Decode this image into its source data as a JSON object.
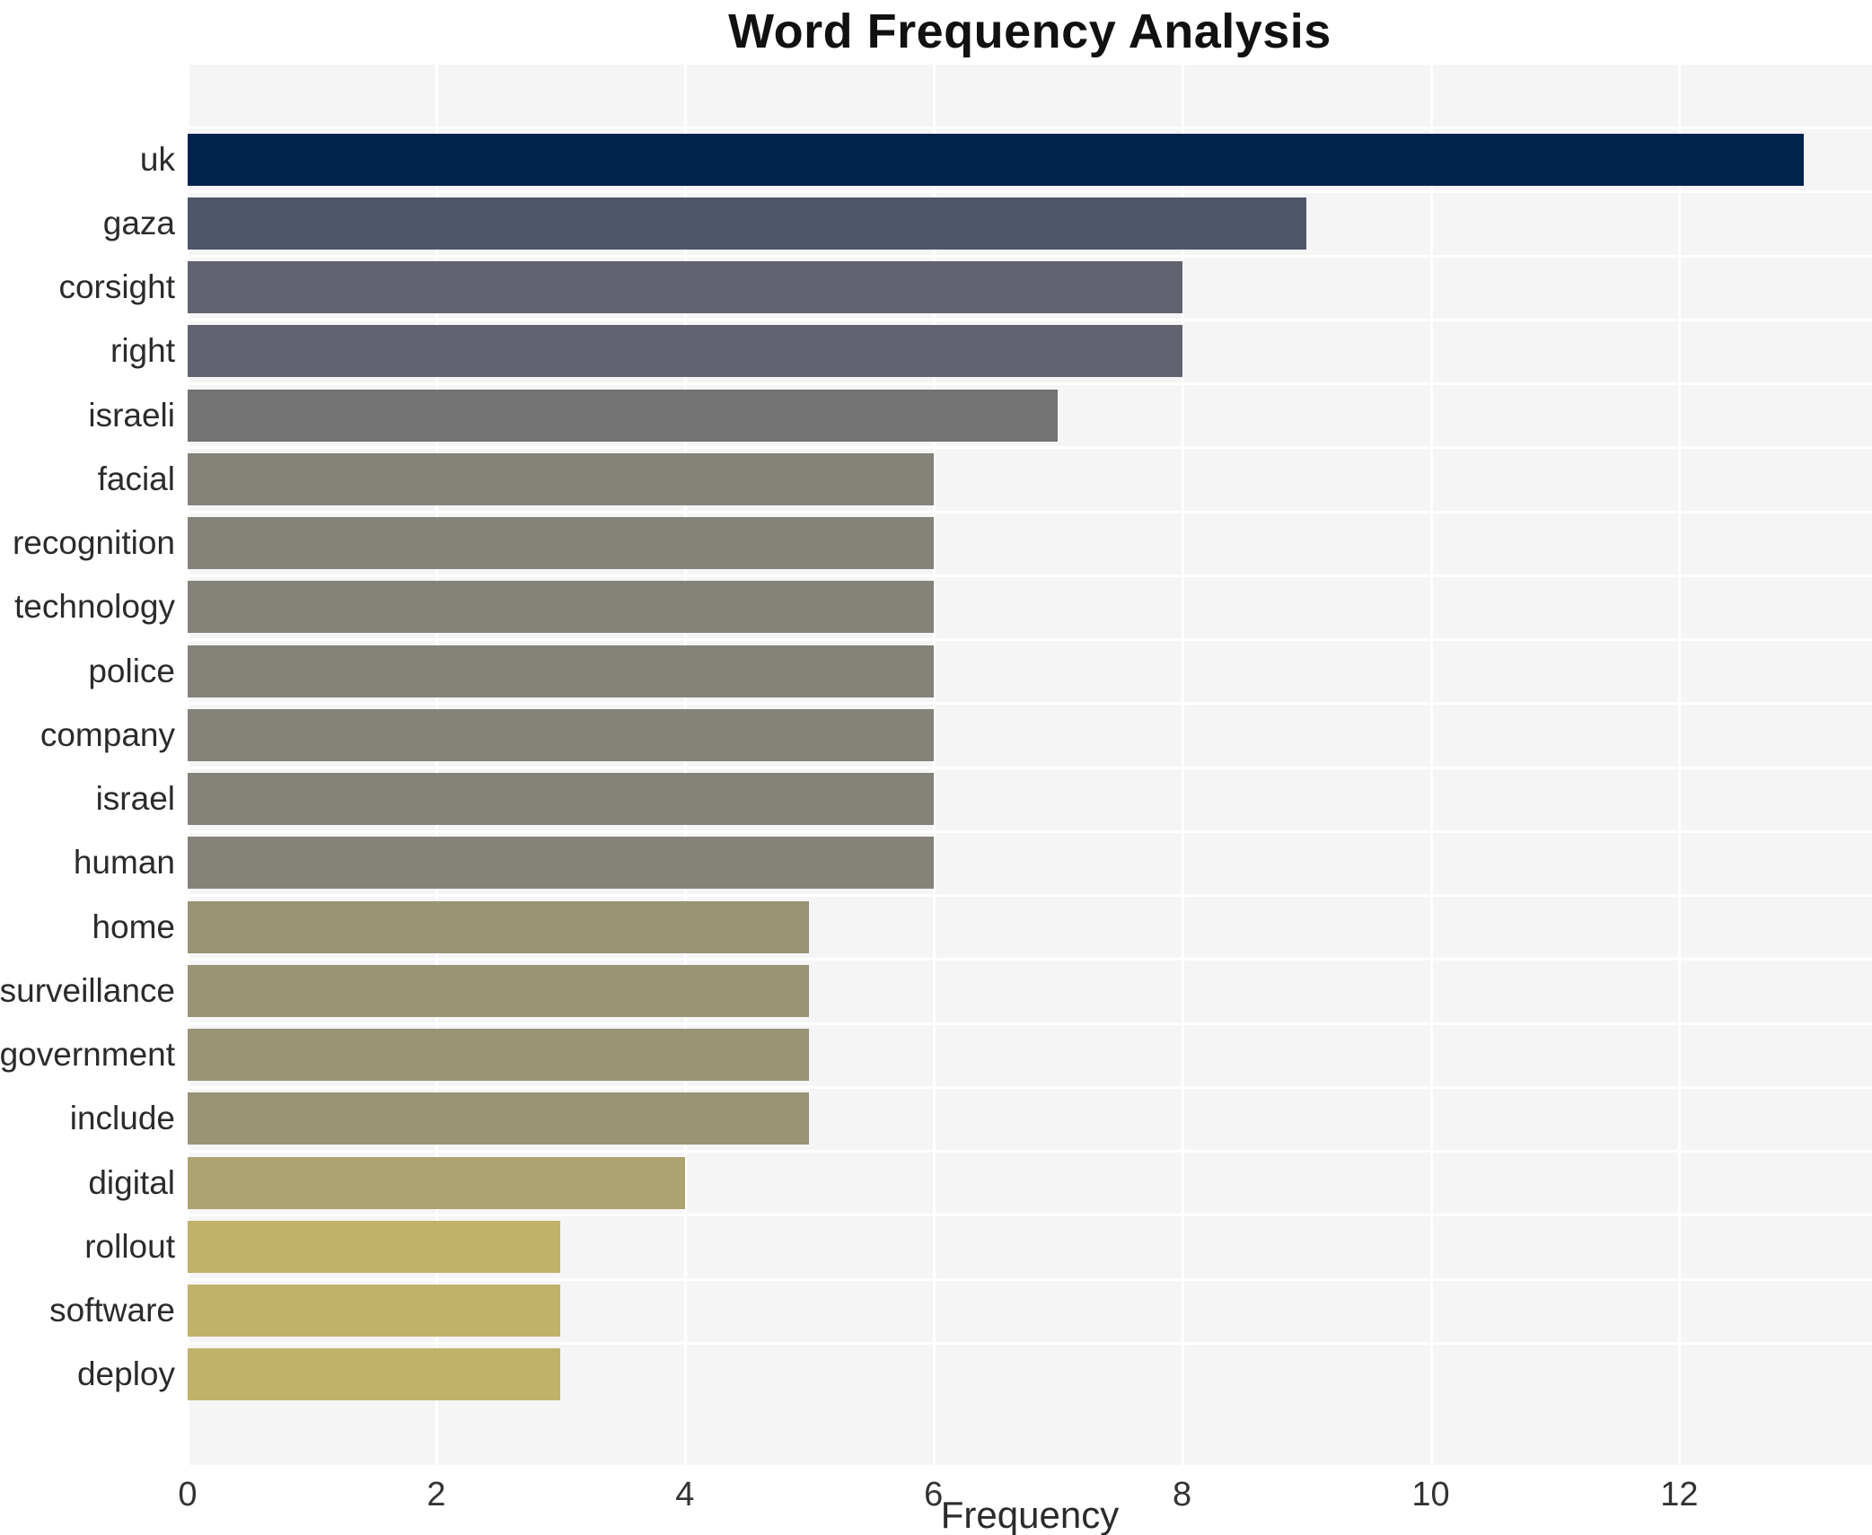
{
  "chart_data": {
    "type": "bar",
    "orientation": "horizontal",
    "title": "Word Frequency Analysis",
    "xlabel": "Frequency",
    "ylabel": "",
    "categories": [
      "uk",
      "gaza",
      "corsight",
      "right",
      "israeli",
      "facial",
      "recognition",
      "technology",
      "police",
      "company",
      "israel",
      "human",
      "home",
      "surveillance",
      "government",
      "include",
      "digital",
      "rollout",
      "software",
      "deploy"
    ],
    "values": [
      13,
      9,
      8,
      8,
      7,
      6,
      6,
      6,
      6,
      6,
      6,
      6,
      5,
      5,
      5,
      5,
      4,
      3,
      3,
      3
    ],
    "bar_colors": [
      "#02234e",
      "#4e566c",
      "#616370",
      "#616370",
      "#737374",
      "#85827a",
      "#85827a",
      "#85827a",
      "#85827a",
      "#85827a",
      "#85827a",
      "#85827a",
      "#9a9375",
      "#9a9375",
      "#9a9375",
      "#9a9375",
      "#ada371",
      "#c0b269",
      "#c0b269",
      "#c0b269"
    ],
    "xlim": [
      0,
      13.55
    ],
    "x_ticks": [
      0,
      2,
      4,
      6,
      8,
      10,
      12
    ],
    "grid": true,
    "legend": false,
    "plot_background": "#f5f5f6",
    "grid_color": "#ffffff",
    "title_color": "#111111",
    "tick_color": "#333333",
    "label_color": "#2b2b2b"
  }
}
